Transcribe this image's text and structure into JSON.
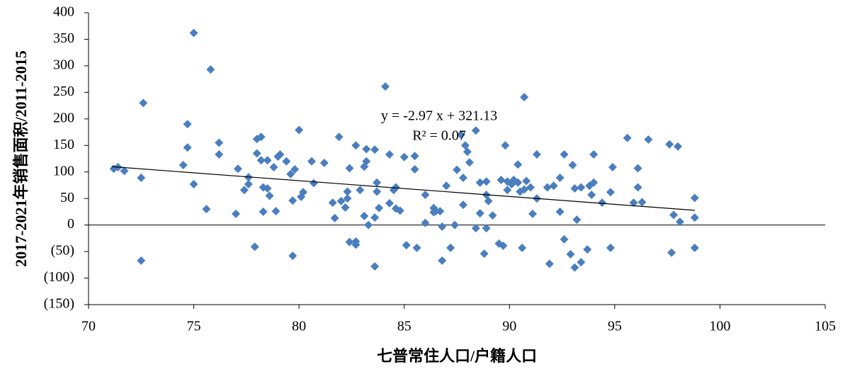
{
  "chart_data": {
    "type": "scatter",
    "x_label": "七普常住人口/户籍人口",
    "y_label": "2017-2021年销售面积/2011-2015",
    "xlim": [
      70,
      105
    ],
    "xticks": [
      70,
      75,
      80,
      85,
      90,
      95,
      100,
      105
    ],
    "ylim": [
      -150,
      400
    ],
    "yticks": [
      {
        "value": -150,
        "label": "(150)"
      },
      {
        "value": -100,
        "label": "(100)"
      },
      {
        "value": -50,
        "label": "(50)"
      },
      0,
      50,
      100,
      150,
      200,
      250,
      300,
      350,
      400
    ],
    "negative_tick_color": "#ff0000",
    "series": [
      {
        "color": "#4a7ebf",
        "x": [
          71.2,
          71.4,
          71.7,
          72.5,
          72.6,
          72.5,
          74.5,
          74.7,
          74.7,
          75.0,
          75.0,
          75.6,
          75.8,
          76.2,
          76.2,
          77.0,
          77.1,
          77.4,
          77.6,
          77.6,
          77.9,
          78.0,
          78.0,
          78.2,
          78.2,
          78.3,
          78.3,
          78.5,
          78.5,
          78.6,
          78.8,
          78.9,
          79.0,
          79.1,
          79.4,
          79.6,
          79.7,
          79.7,
          79.8,
          80.0,
          80.1,
          80.2,
          80.6,
          80.7,
          81.2,
          81.6,
          81.7,
          81.9,
          82.0,
          82.2,
          82.3,
          82.3,
          82.4,
          82.4,
          82.7,
          82.7,
          82.7,
          82.9,
          83.1,
          83.1,
          83.2,
          83.2,
          83.3,
          83.6,
          83.6,
          83.6,
          83.7,
          83.7,
          83.8,
          84.1,
          84.3,
          84.3,
          84.5,
          84.6,
          84.6,
          84.8,
          85.0,
          85.1,
          85.5,
          85.5,
          85.6,
          86.0,
          86.0,
          86.4,
          86.4,
          86.5,
          86.7,
          86.8,
          86.8,
          87.0,
          87.2,
          87.4,
          87.5,
          87.7,
          87.8,
          87.8,
          87.9,
          88.0,
          88.1,
          88.4,
          88.4,
          88.6,
          88.6,
          88.8,
          88.9,
          88.9,
          88.9,
          89.0,
          89.2,
          89.5,
          89.6,
          89.7,
          89.8,
          89.9,
          89.9,
          90.1,
          90.2,
          90.4,
          90.4,
          90.5,
          90.6,
          90.7,
          90.7,
          90.8,
          91.0,
          91.1,
          91.3,
          91.3,
          91.8,
          91.9,
          92.1,
          92.4,
          92.4,
          92.6,
          92.6,
          92.9,
          93.0,
          93.1,
          93.1,
          93.2,
          93.4,
          93.4,
          93.7,
          93.8,
          93.9,
          94.0,
          94.0,
          94.4,
          94.8,
          94.8,
          94.9,
          95.6,
          95.9,
          96.1,
          96.1,
          96.3,
          96.6,
          97.6,
          97.7,
          97.8,
          98.0,
          98.1,
          98.8,
          98.8,
          98.8
        ],
        "values": [
          106,
          109,
          102,
          89,
          230,
          -67,
          113,
          190,
          146,
          362,
          77,
          30,
          293,
          155,
          133,
          21,
          106,
          66,
          90,
          77,
          -41,
          162,
          135,
          166,
          122,
          71,
          25,
          122,
          69,
          55,
          109,
          26,
          129,
          133,
          120,
          96,
          -58,
          46,
          105,
          179,
          53,
          62,
          120,
          79,
          117,
          42,
          13,
          166,
          45,
          33,
          63,
          50,
          -32,
          107,
          150,
          -31,
          -37,
          66,
          17,
          110,
          143,
          120,
          0,
          14,
          142,
          -78,
          63,
          80,
          32,
          261,
          133,
          41,
          66,
          71,
          31,
          27,
          128,
          -38,
          130,
          105,
          -43,
          57,
          4,
          24,
          32,
          26,
          26,
          -67,
          -3,
          74,
          -43,
          0,
          104,
          170,
          38,
          89,
          150,
          138,
          118,
          178,
          -6,
          80,
          22,
          -54,
          82,
          57,
          -6,
          45,
          18,
          -35,
          85,
          -39,
          150,
          66,
          82,
          77,
          85,
          80,
          114,
          63,
          -43,
          241,
          67,
          83,
          71,
          21,
          133,
          50,
          71,
          -73,
          74,
          89,
          25,
          133,
          -27,
          -55,
          113,
          -80,
          69,
          10,
          -70,
          71,
          -46,
          74,
          57,
          133,
          80,
          42,
          62,
          -43,
          109,
          164,
          42,
          107,
          71,
          43,
          161,
          152,
          -52,
          19,
          148,
          6,
          51,
          14,
          -43
        ]
      }
    ],
    "trendline": {
      "slope": -2.97,
      "intercept": 321.13,
      "x_range": [
        71.1,
        98.8
      ],
      "color": "#000000",
      "equation": "y = -2.97 x + 321.13",
      "r2_label": "R² = 0.07"
    }
  }
}
